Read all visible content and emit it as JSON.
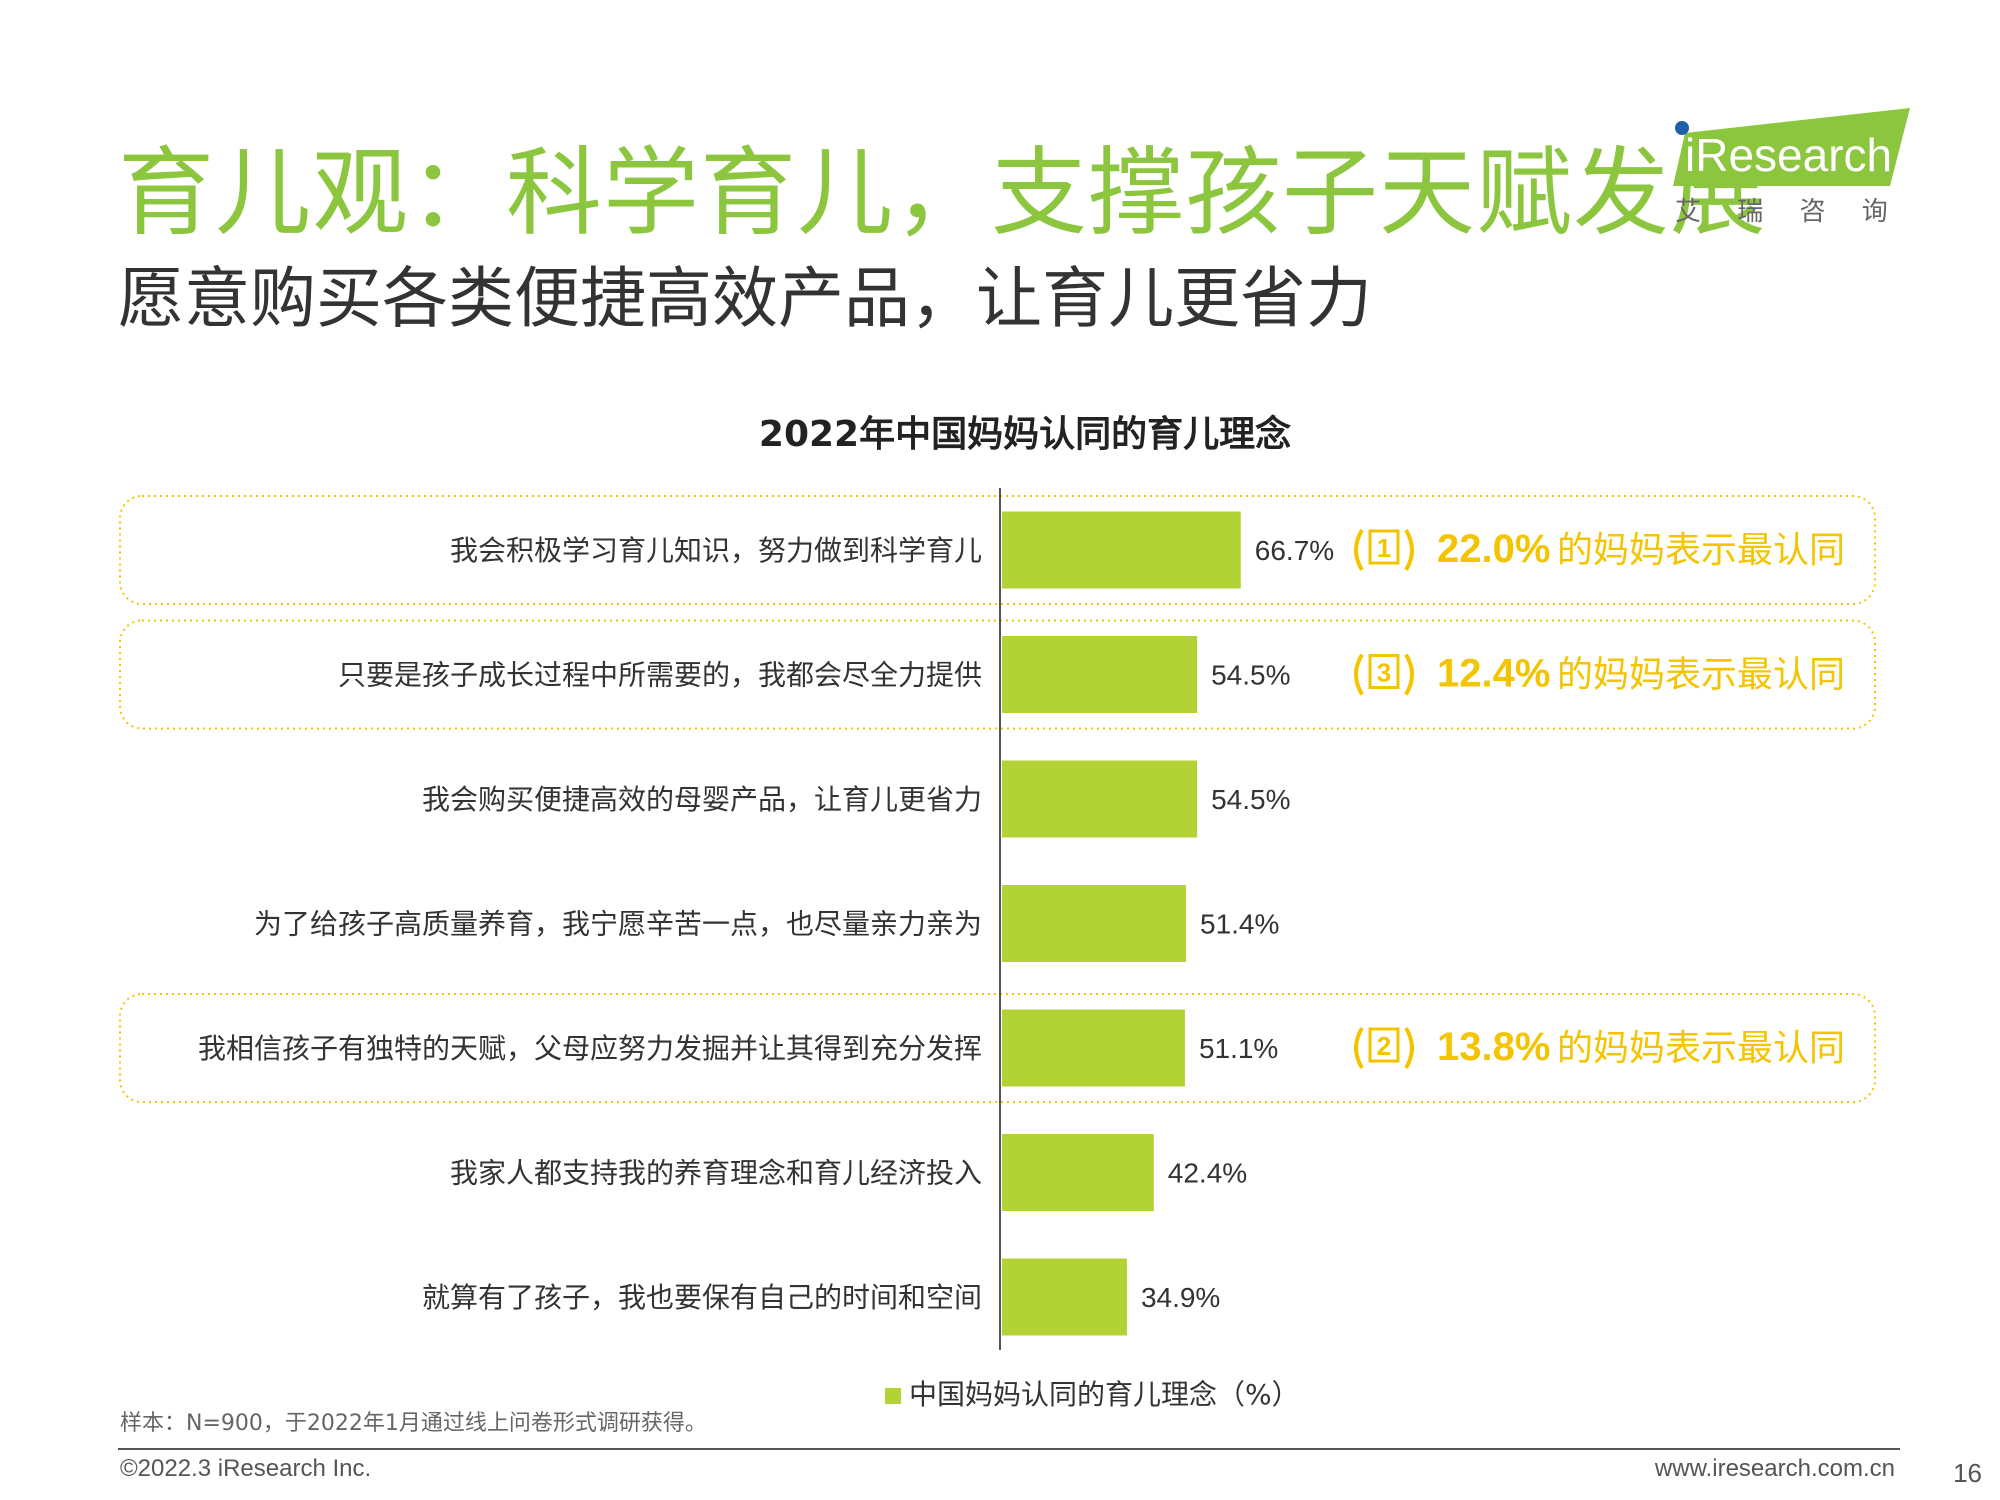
{
  "header": {
    "title": "育儿观：科学育儿，支撑孩子天赋发展",
    "subtitle": "愿意购买各类便捷高效产品，让育儿更省力"
  },
  "logo": {
    "brand": "iResearch",
    "tagline": "艾 瑞 咨 询"
  },
  "colors": {
    "title_green": "#8cc63f",
    "bar": "#b2d235",
    "highlight": "#f5c400",
    "axis": "#555555"
  },
  "chart_data": {
    "type": "bar",
    "orientation": "horizontal",
    "title": "2022年中国妈妈认同的育儿理念",
    "categories": [
      "我会积极学习育儿知识，努力做到科学育儿",
      "只要是孩子成长过程中所需要的，我都会尽全力提供",
      "我会购买便捷高效的母婴产品，让育儿更省力",
      "为了给孩子高质量养育，我宁愿辛苦一点，也尽量亲力亲为",
      "我相信孩子有独特的天赋，父母应努力发掘并让其得到充分发挥",
      "我家人都支持我的养育理念和育儿经济投入",
      "就算有了孩子，我也要保有自己的时间和空间"
    ],
    "series": [
      {
        "name": "中国妈妈认同的育儿理念（%）",
        "values": [
          66.7,
          54.5,
          54.5,
          51.4,
          51.1,
          42.4,
          34.9
        ]
      }
    ],
    "value_labels": [
      "66.7%",
      "54.5%",
      "54.5%",
      "51.4%",
      "51.1%",
      "42.4%",
      "34.9%"
    ],
    "legend_position": "bottom",
    "annotations": [
      {
        "category_index": 0,
        "rank": "1",
        "value": "22.0%",
        "text": "的妈妈表示最认同"
      },
      {
        "category_index": 1,
        "rank": "3",
        "value": "12.4%",
        "text": "的妈妈表示最认同"
      },
      {
        "category_index": 4,
        "rank": "2",
        "value": "13.8%",
        "text": "的妈妈表示最认同"
      }
    ]
  },
  "footer": {
    "note": "样本：N=900，于2022年1月通过线上问卷形式调研获得。",
    "copyright": "©2022.3 iResearch Inc.",
    "url": "www.iresearch.com.cn",
    "page": "16"
  }
}
